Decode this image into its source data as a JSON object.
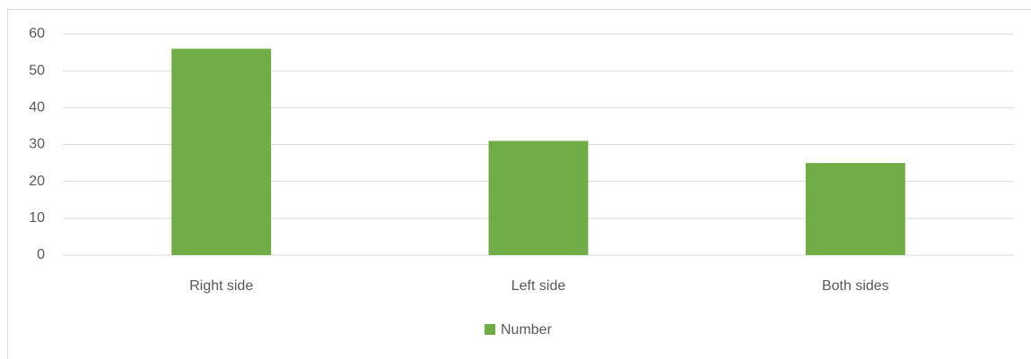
{
  "chart_data": {
    "type": "bar",
    "categories": [
      "Right side",
      "Left side",
      "Both sides"
    ],
    "series": [
      {
        "name": "Number",
        "color": "#70ad47",
        "values": [
          56,
          31,
          25
        ]
      }
    ],
    "ylim": [
      0,
      60
    ],
    "yticks": [
      0,
      10,
      20,
      30,
      40,
      50,
      60
    ],
    "grid": true,
    "legend": "bottom"
  }
}
